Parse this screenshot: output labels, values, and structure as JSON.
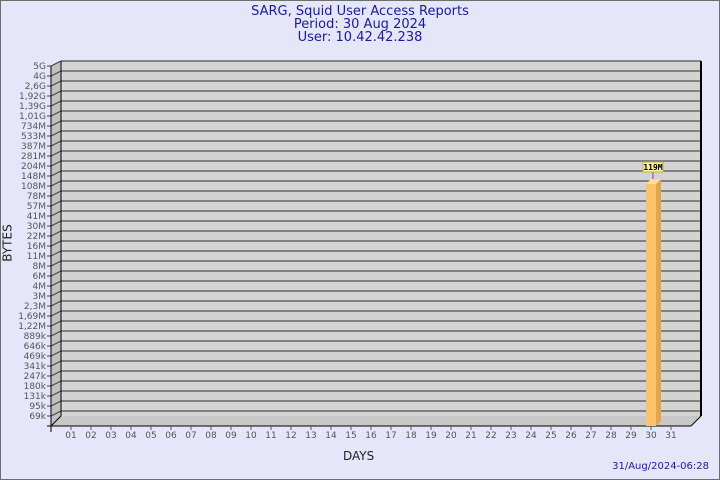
{
  "header": {
    "title": "SARG, Squid User Access Reports",
    "period": "Period: 30 Aug 2024",
    "user": "User: 10.42.42.238"
  },
  "footer": {
    "timestamp": "31/Aug/2024-06:28"
  },
  "colors": {
    "background": "#e6e6fa",
    "plot": "#d3d3d3",
    "bar": "#ffc266",
    "title": "#1a1aa0"
  },
  "chart_data": {
    "type": "bar",
    "xlabel": "DAYS",
    "ylabel": "BYTES",
    "y_scale": "log",
    "y_ticks": [
      "5G",
      "4G",
      "2,6G",
      "1,92G",
      "1,39G",
      "1,01G",
      "734M",
      "533M",
      "387M",
      "281M",
      "204M",
      "148M",
      "108M",
      "78M",
      "57M",
      "41M",
      "30M",
      "22M",
      "16M",
      "11M",
      "8M",
      "6M",
      "4M",
      "3M",
      "2,3M",
      "1,69M",
      "1,22M",
      "889k",
      "646k",
      "469k",
      "341k",
      "247k",
      "180k",
      "131k",
      "95k",
      "69k"
    ],
    "categories": [
      "01",
      "02",
      "03",
      "04",
      "05",
      "06",
      "07",
      "08",
      "09",
      "10",
      "11",
      "12",
      "13",
      "14",
      "15",
      "16",
      "17",
      "18",
      "19",
      "20",
      "21",
      "22",
      "23",
      "24",
      "25",
      "26",
      "27",
      "28",
      "29",
      "30",
      "31"
    ],
    "bars": [
      {
        "category": "30",
        "value": "119M"
      }
    ],
    "grid": true
  }
}
